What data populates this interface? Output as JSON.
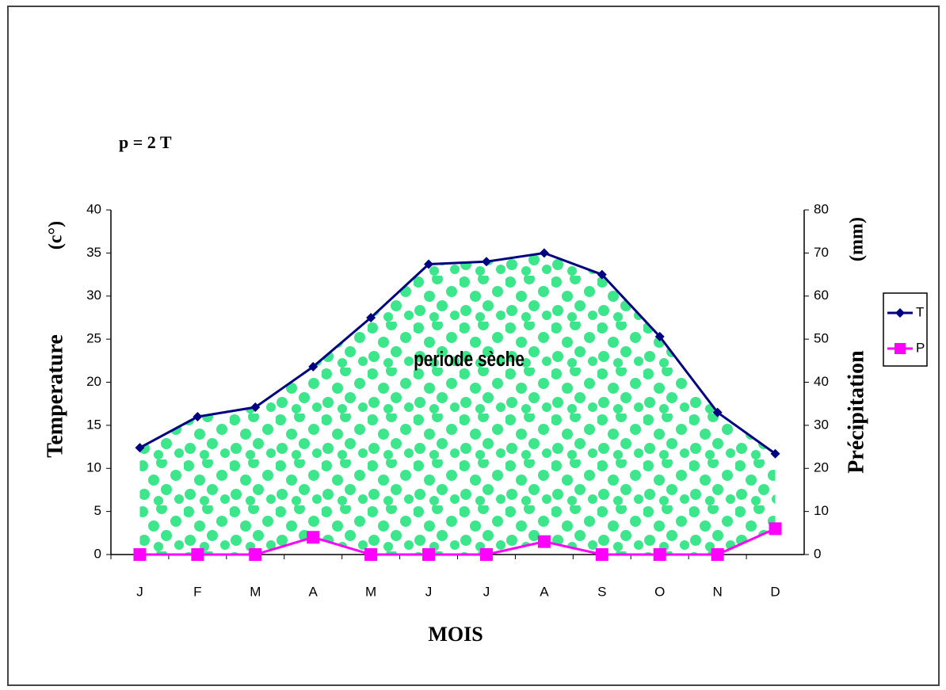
{
  "chart_data": {
    "type": "line",
    "formula": "p = 2 T",
    "annotation": "periode sèche",
    "xlabel": "MOIS",
    "ylabel": "Temperature",
    "yunit": "(c°)",
    "y2label": "Précipitation",
    "y2unit": "(mm)",
    "categories": [
      "J",
      "F",
      "M",
      "A",
      "M",
      "J",
      "J",
      "A",
      "S",
      "O",
      "N",
      "D"
    ],
    "series": [
      {
        "name": "T",
        "color": "#000080",
        "values": [
          12.4,
          16,
          17.1,
          21.8,
          27.5,
          33.7,
          34,
          35,
          32.5,
          25.3,
          16.5,
          11.7
        ]
      },
      {
        "name": "P",
        "color": "#ff00ff",
        "axis": "y2",
        "values": [
          0,
          0,
          0,
          4,
          0,
          0,
          0,
          3,
          0,
          0,
          0,
          6
        ]
      }
    ],
    "ylim": [
      0,
      40
    ],
    "yticks": [
      0,
      5,
      10,
      15,
      20,
      25,
      30,
      35,
      40
    ],
    "y2lim": [
      0,
      80
    ],
    "y2ticks": [
      0,
      10,
      20,
      30,
      40,
      50,
      60,
      70,
      80
    ],
    "legend": "right"
  }
}
